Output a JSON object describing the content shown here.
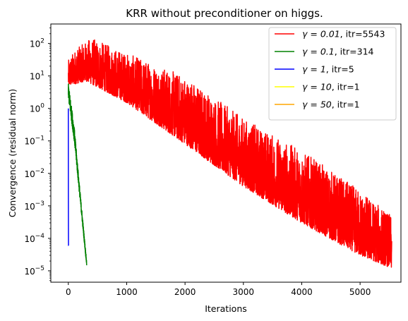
{
  "chart_data": {
    "type": "line",
    "title": "KRR without preconditioner on higgs.",
    "xlabel": "Iterations",
    "ylabel": "Convergence (residual norm)",
    "xlim": [
      -300,
      5700
    ],
    "ylim_log10": [
      -5.35,
      2.6
    ],
    "yscale": "log",
    "grid": false,
    "legend_position": "top-right",
    "x_ticks": [
      0,
      1000,
      2000,
      3000,
      4000,
      5000
    ],
    "x_tick_labels": [
      "0",
      "1000",
      "2000",
      "3000",
      "4000",
      "5000"
    ],
    "y_ticks_exp": [
      2,
      1,
      0,
      -1,
      -2,
      -3,
      -4,
      -5
    ],
    "y_tick_bases": [
      "10",
      "10",
      "10",
      "10",
      "10",
      "10",
      "10",
      "10"
    ],
    "y_tick_exponents": [
      "2",
      "1",
      "0",
      "−1",
      "−2",
      "−3",
      "−4",
      "−5"
    ],
    "series": [
      {
        "name": "γ = 0.01, itr=5543",
        "gamma_label": "γ = 0.01",
        "itr_label": ", itr=5543",
        "color": "#ff0000",
        "noisy": true,
        "iterations": 5543,
        "upper_envelope": [
          [
            0,
            30
          ],
          [
            100,
            60
          ],
          [
            390,
            150
          ],
          [
            1000,
            50
          ],
          [
            2000,
            10
          ],
          [
            3000,
            0.5
          ],
          [
            4000,
            0.05
          ],
          [
            5000,
            0.003
          ],
          [
            5543,
            0.0005
          ]
        ],
        "lower_envelope": [
          [
            0,
            5
          ],
          [
            300,
            7
          ],
          [
            1000,
            1.5
          ],
          [
            2000,
            0.08
          ],
          [
            3000,
            0.004
          ],
          [
            4000,
            0.0003
          ],
          [
            5000,
            3e-05
          ],
          [
            5543,
            1.2e-05
          ]
        ]
      },
      {
        "name": "γ = 0.1, itr=314",
        "gamma_label": "γ = 0.1",
        "itr_label": ", itr=314",
        "color": "#008000",
        "noisy": true,
        "iterations": 314,
        "upper_envelope": [
          [
            0,
            6
          ],
          [
            100,
            0.3
          ],
          [
            200,
            0.003
          ],
          [
            314,
            2e-05
          ]
        ],
        "lower_envelope": [
          [
            0,
            2
          ],
          [
            100,
            0.1
          ],
          [
            200,
            0.0015
          ],
          [
            314,
            1.4e-05
          ]
        ]
      },
      {
        "name": "γ = 1, itr=5",
        "gamma_label": "γ = 1",
        "itr_label": ", itr=5",
        "color": "#0000ff",
        "noisy": false,
        "points": [
          [
            0,
            1.0
          ],
          [
            1,
            0.002
          ],
          [
            2,
            0.0002
          ],
          [
            3,
            6e-05
          ],
          [
            4,
            6e-05
          ]
        ]
      },
      {
        "name": "γ = 10, itr=1",
        "gamma_label": "γ = 10",
        "itr_label": ", itr=1",
        "color": "#ffff00",
        "noisy": false,
        "points": [
          [
            0,
            1.0
          ]
        ]
      },
      {
        "name": "γ = 50, itr=1",
        "gamma_label": "γ = 50",
        "itr_label": ", itr=1",
        "color": "#ffa500",
        "noisy": false,
        "points": [
          [
            0,
            1.0
          ]
        ]
      }
    ]
  }
}
